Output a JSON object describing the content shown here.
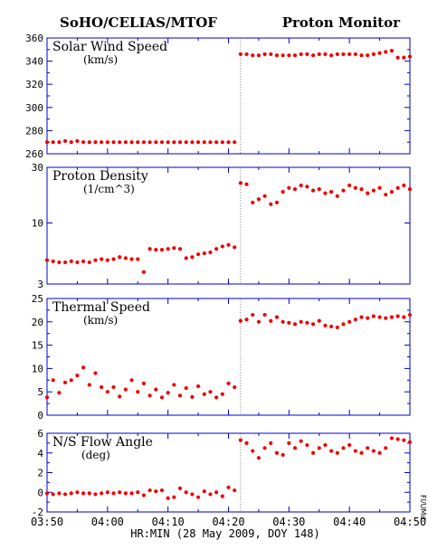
{
  "header": {
    "left_title": "SoHO/CELIAS/MTOF",
    "right_title": "Proton Monitor"
  },
  "footer": {
    "xlabel": "HR:MIN (28 May 2009, DOY 148)",
    "credit": "FI/UMd"
  },
  "chart_data": [
    {
      "type": "scatter",
      "title": "Solar Wind Speed",
      "unit": "(km/s)",
      "ylim": [
        260,
        360
      ],
      "yticks": [
        "260",
        "280",
        "300",
        "320",
        "340",
        "360"
      ],
      "yscale": "linear",
      "gap_time": "04:22",
      "series_color": "#ee0000",
      "x": [
        "03:50",
        "03:51",
        "03:52",
        "03:53",
        "03:54",
        "03:55",
        "03:56",
        "03:57",
        "03:58",
        "03:59",
        "04:00",
        "04:01",
        "04:02",
        "04:03",
        "04:04",
        "04:05",
        "04:06",
        "04:07",
        "04:08",
        "04:09",
        "04:10",
        "04:11",
        "04:12",
        "04:13",
        "04:14",
        "04:15",
        "04:16",
        "04:17",
        "04:18",
        "04:19",
        "04:20",
        "04:21",
        "04:22",
        "04:23",
        "04:24",
        "04:25",
        "04:26",
        "04:27",
        "04:28",
        "04:29",
        "04:30",
        "04:31",
        "04:32",
        "04:33",
        "04:34",
        "04:35",
        "04:36",
        "04:37",
        "04:38",
        "04:39",
        "04:40",
        "04:41",
        "04:42",
        "04:43",
        "04:44",
        "04:45",
        "04:46",
        "04:47",
        "04:48",
        "04:49",
        "04:50"
      ],
      "y": [
        270,
        270,
        270,
        271,
        270,
        271,
        270,
        270,
        270,
        270,
        270,
        270,
        270,
        270,
        270,
        270,
        270,
        270,
        270,
        270,
        270,
        270,
        270,
        270,
        270,
        270,
        270,
        270,
        270,
        270,
        270,
        270,
        346,
        346,
        345,
        345,
        346,
        346,
        345,
        345,
        345,
        345,
        346,
        346,
        345,
        346,
        346,
        345,
        346,
        346,
        346,
        346,
        345,
        345,
        346,
        347,
        348,
        349,
        343,
        343,
        344
      ]
    },
    {
      "type": "scatter",
      "title": "Proton Density",
      "unit": "(1/cm^3)",
      "ylim": [
        3,
        30
      ],
      "yticks": [
        "3",
        "10",
        "30"
      ],
      "yscale": "log",
      "gap_time": "04:22",
      "series_color": "#ee0000",
      "x": [
        "03:50",
        "03:51",
        "03:52",
        "03:53",
        "03:54",
        "03:55",
        "03:56",
        "03:57",
        "03:58",
        "03:59",
        "04:00",
        "04:01",
        "04:02",
        "04:03",
        "04:04",
        "04:05",
        "04:06",
        "04:07",
        "04:08",
        "04:09",
        "04:10",
        "04:11",
        "04:12",
        "04:13",
        "04:14",
        "04:15",
        "04:16",
        "04:17",
        "04:18",
        "04:19",
        "04:20",
        "04:21",
        "04:22",
        "04:23",
        "04:24",
        "04:25",
        "04:26",
        "04:27",
        "04:28",
        "04:29",
        "04:30",
        "04:31",
        "04:32",
        "04:33",
        "04:34",
        "04:35",
        "04:36",
        "04:37",
        "04:38",
        "04:39",
        "04:40",
        "04:41",
        "04:42",
        "04:43",
        "04:44",
        "04:45",
        "04:46",
        "04:47",
        "04:48",
        "04:49",
        "04:50"
      ],
      "y": [
        4.8,
        4.7,
        4.6,
        4.6,
        4.7,
        4.6,
        4.7,
        4.6,
        4.8,
        4.9,
        4.8,
        4.9,
        5.1,
        5.0,
        4.9,
        4.9,
        3.8,
        6.0,
        5.9,
        5.9,
        6.0,
        6.1,
        6.0,
        5.0,
        5.1,
        5.4,
        5.5,
        5.6,
        6.0,
        6.3,
        6.5,
        6.2,
        22.0,
        21.5,
        15.0,
        16.0,
        17.0,
        14.5,
        15.0,
        18.5,
        20.0,
        19.5,
        21.0,
        20.5,
        19.0,
        19.5,
        18.0,
        18.5,
        17.0,
        19.0,
        21.0,
        20.0,
        19.5,
        18.0,
        19.0,
        20.0,
        17.5,
        18.5,
        20.0,
        21.0,
        19.5
      ]
    },
    {
      "type": "scatter",
      "title": "Thermal Speed",
      "unit": "(km/s)",
      "ylim": [
        0,
        25
      ],
      "yticks": [
        "0",
        "5",
        "10",
        "15",
        "20",
        "25"
      ],
      "yscale": "linear",
      "gap_time": "04:22",
      "series_color": "#ee0000",
      "x": [
        "03:50",
        "03:51",
        "03:52",
        "03:53",
        "03:54",
        "03:55",
        "03:56",
        "03:57",
        "03:58",
        "03:59",
        "04:00",
        "04:01",
        "04:02",
        "04:03",
        "04:04",
        "04:05",
        "04:06",
        "04:07",
        "04:08",
        "04:09",
        "04:10",
        "04:11",
        "04:12",
        "04:13",
        "04:14",
        "04:15",
        "04:16",
        "04:17",
        "04:18",
        "04:19",
        "04:20",
        "04:21",
        "04:22",
        "04:23",
        "04:24",
        "04:25",
        "04:26",
        "04:27",
        "04:28",
        "04:29",
        "04:30",
        "04:31",
        "04:32",
        "04:33",
        "04:34",
        "04:35",
        "04:36",
        "04:37",
        "04:38",
        "04:39",
        "04:40",
        "04:41",
        "04:42",
        "04:43",
        "04:44",
        "04:45",
        "04:46",
        "04:47",
        "04:48",
        "04:49",
        "04:50"
      ],
      "y": [
        3.8,
        7.5,
        4.8,
        7.0,
        7.5,
        8.5,
        10.2,
        6.5,
        9.0,
        6.0,
        5.0,
        6.0,
        4.0,
        5.5,
        7.5,
        5.0,
        6.8,
        4.2,
        5.5,
        3.8,
        4.8,
        6.5,
        4.2,
        5.8,
        3.9,
        6.2,
        4.5,
        5.0,
        3.8,
        4.5,
        6.8,
        6.0,
        20.2,
        20.5,
        21.5,
        20.0,
        21.5,
        20.2,
        21.0,
        20.0,
        19.8,
        19.5,
        20.0,
        19.8,
        19.5,
        20.2,
        19.2,
        19.0,
        18.8,
        19.5,
        20.0,
        20.5,
        21.0,
        20.8,
        21.2,
        21.0,
        20.8,
        21.0,
        21.2,
        21.0,
        21.5
      ]
    },
    {
      "type": "scatter",
      "title": "N/S Flow Angle",
      "unit": "(deg)",
      "ylim": [
        -2,
        6
      ],
      "yticks": [
        "-2",
        "0",
        "2",
        "4",
        "6"
      ],
      "yscale": "linear",
      "gap_time": "04:22",
      "series_color": "#ee0000",
      "x": [
        "03:50",
        "03:51",
        "03:52",
        "03:53",
        "03:54",
        "03:55",
        "03:56",
        "03:57",
        "03:58",
        "03:59",
        "04:00",
        "04:01",
        "04:02",
        "04:03",
        "04:04",
        "04:05",
        "04:06",
        "04:07",
        "04:08",
        "04:09",
        "04:10",
        "04:11",
        "04:12",
        "04:13",
        "04:14",
        "04:15",
        "04:16",
        "04:17",
        "04:18",
        "04:19",
        "04:20",
        "04:21",
        "04:22",
        "04:23",
        "04:24",
        "04:25",
        "04:26",
        "04:27",
        "04:28",
        "04:29",
        "04:30",
        "04:31",
        "04:32",
        "04:33",
        "04:34",
        "04:35",
        "04:36",
        "04:37",
        "04:38",
        "04:39",
        "04:40",
        "04:41",
        "04:42",
        "04:43",
        "04:44",
        "04:45",
        "04:46",
        "04:47",
        "04:48",
        "04:49",
        "04:50"
      ],
      "y": [
        -0.1,
        -0.2,
        -0.1,
        -0.2,
        -0.1,
        0.0,
        -0.1,
        -0.1,
        -0.2,
        -0.1,
        0.0,
        -0.1,
        0.0,
        -0.1,
        -0.1,
        0.0,
        -0.3,
        0.2,
        0.1,
        0.2,
        -0.6,
        -0.5,
        0.4,
        0.0,
        -0.2,
        -0.5,
        0.1,
        -0.2,
        0.0,
        -0.4,
        0.5,
        0.2,
        5.3,
        5.0,
        4.2,
        3.5,
        4.5,
        5.0,
        4.0,
        3.8,
        5.0,
        4.5,
        5.2,
        4.8,
        4.0,
        4.5,
        4.8,
        4.2,
        4.0,
        4.5,
        4.8,
        4.2,
        4.0,
        4.5,
        4.2,
        4.0,
        4.5,
        5.5,
        5.4,
        5.3,
        5.1
      ]
    }
  ],
  "xaxis": {
    "xlim": [
      "03:50",
      "04:50"
    ],
    "ticks": [
      "03:50",
      "04:00",
      "04:10",
      "04:20",
      "04:30",
      "04:40",
      "04:50"
    ]
  }
}
